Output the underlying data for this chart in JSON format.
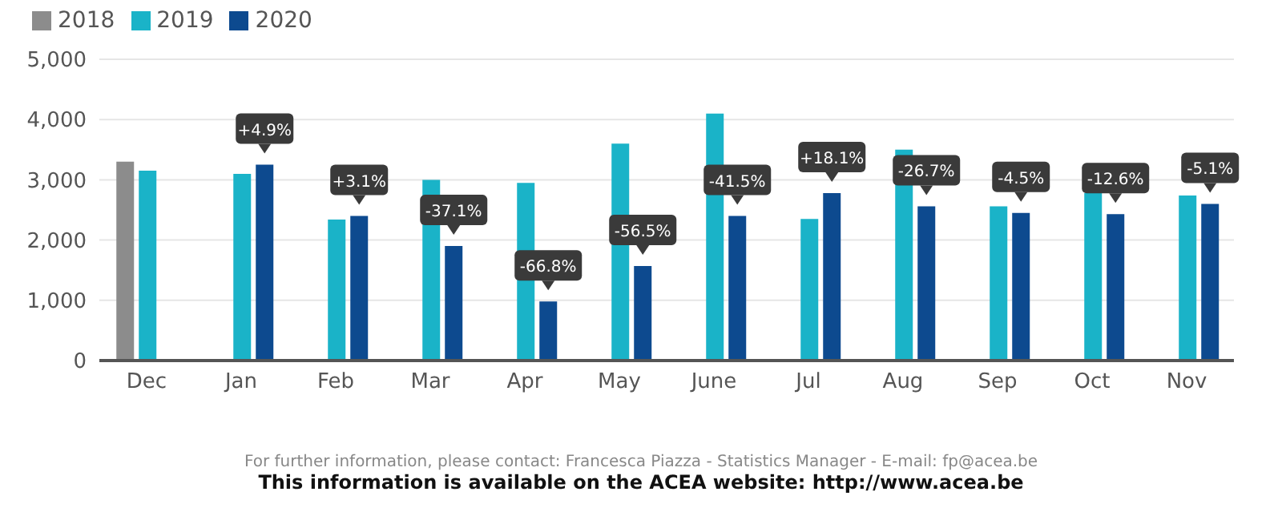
{
  "chart_data": {
    "type": "bar",
    "categories": [
      "Dec",
      "Jan",
      "Feb",
      "Mar",
      "Apr",
      "May",
      "June",
      "Jul",
      "Aug",
      "Sep",
      "Oct",
      "Nov"
    ],
    "series": [
      {
        "name": "2018",
        "color": "#8c8c8c",
        "values": [
          3300,
          null,
          null,
          null,
          null,
          null,
          null,
          null,
          null,
          null,
          null,
          null
        ]
      },
      {
        "name": "2019",
        "color": "#1ab3c8",
        "values": [
          3150,
          3100,
          2340,
          3000,
          2950,
          3600,
          4100,
          2350,
          3500,
          2560,
          2780,
          2740
        ]
      },
      {
        "name": "2020",
        "color": "#0d4a8f",
        "values": [
          null,
          3250,
          2400,
          1900,
          980,
          1570,
          2400,
          2780,
          2560,
          2450,
          2430,
          2600
        ]
      }
    ],
    "ylim": [
      0,
      5000
    ],
    "yticks": [
      {
        "value": 0,
        "label": "0"
      },
      {
        "value": 1000,
        "label": "1,000"
      },
      {
        "value": 2000,
        "label": "2,000"
      },
      {
        "value": 3000,
        "label": "3,000"
      },
      {
        "value": 4000,
        "label": "4,000"
      },
      {
        "value": 5000,
        "label": "5,000"
      }
    ],
    "grid": "y",
    "legend": "top left",
    "annotations": [
      "+4.9%",
      "+3.1%",
      "-37.1%",
      "-66.8%",
      "-56.5%",
      "-41.5%",
      "+18.1%",
      "-26.7%",
      "-4.5%",
      "-12.6%",
      "-5.1%",
      "For further information, please contact: Francesca Piazza - Statistics Manager - E-mail: fp@acea.be",
      "This information is available on the ACEA website: http://www.acea.be"
    ]
  }
}
